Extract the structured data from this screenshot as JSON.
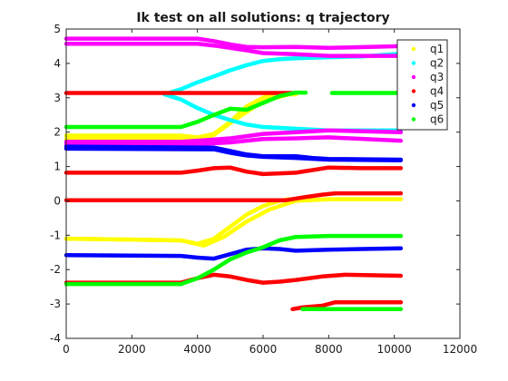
{
  "chart_data": {
    "type": "scatter",
    "title": "Ik test on all solutions: q trajectory",
    "xlabel": "",
    "ylabel": "",
    "xlim": [
      0,
      12000
    ],
    "ylim": [
      -4,
      5
    ],
    "xticks": [
      0,
      2000,
      4000,
      6000,
      8000,
      10000,
      12000
    ],
    "yticks": [
      -4,
      -3,
      -2,
      -1,
      0,
      1,
      2,
      3,
      4,
      5
    ],
    "xtick_labels": [
      "0",
      "2000",
      "4000",
      "6000",
      "8000",
      "10000",
      "12000"
    ],
    "ytick_labels": [
      "-4",
      "-3",
      "-2",
      "-1",
      "0",
      "1",
      "2",
      "3",
      "4",
      "5"
    ],
    "grid": false,
    "legend_position": "top-right",
    "series": [
      {
        "name": "q1",
        "color": "#ffff00",
        "curves": [
          [
            [
              0,
              1.9
            ],
            [
              3500,
              1.9
            ],
            [
              4000,
              1.85
            ],
            [
              4500,
              1.95
            ],
            [
              5000,
              2.3
            ],
            [
              5500,
              2.75
            ],
            [
              6000,
              3.0
            ],
            [
              6300,
              3.1
            ]
          ],
          [
            [
              0,
              1.8
            ],
            [
              3500,
              1.8
            ],
            [
              4000,
              1.78
            ],
            [
              4500,
              1.92
            ],
            [
              5200,
              2.4
            ],
            [
              6000,
              2.9
            ],
            [
              6800,
              3.1
            ],
            [
              7000,
              3.1
            ]
          ],
          [
            [
              0,
              -1.1
            ],
            [
              3500,
              -1.15
            ],
            [
              4000,
              -1.25
            ],
            [
              4500,
              -1.1
            ],
            [
              5000,
              -0.75
            ],
            [
              5500,
              -0.4
            ],
            [
              6000,
              -0.15
            ],
            [
              6500,
              0.0
            ],
            [
              6800,
              0.05
            ]
          ],
          [
            [
              0,
              -1.1
            ],
            [
              3500,
              -1.15
            ],
            [
              4200,
              -1.3
            ],
            [
              4800,
              -1.05
            ],
            [
              5500,
              -0.6
            ],
            [
              6200,
              -0.25
            ],
            [
              7000,
              0.0
            ],
            [
              8000,
              0.05
            ],
            [
              10200,
              0.05
            ]
          ]
        ]
      },
      {
        "name": "q2",
        "color": "#00ffff",
        "curves": [
          [
            [
              3000,
              3.1
            ],
            [
              3500,
              3.25
            ],
            [
              4000,
              3.45
            ],
            [
              4500,
              3.62
            ],
            [
              5000,
              3.8
            ],
            [
              5500,
              3.95
            ],
            [
              6000,
              4.07
            ],
            [
              6500,
              4.12
            ],
            [
              7000,
              4.15
            ],
            [
              8000,
              4.18
            ],
            [
              9000,
              4.2
            ],
            [
              10200,
              4.28
            ]
          ],
          [
            [
              3000,
              3.1
            ],
            [
              3500,
              2.95
            ],
            [
              4000,
              2.7
            ],
            [
              4500,
              2.5
            ],
            [
              5000,
              2.35
            ],
            [
              5500,
              2.22
            ],
            [
              6000,
              2.15
            ],
            [
              7000,
              2.1
            ],
            [
              8000,
              2.05
            ],
            [
              10200,
              2.05
            ]
          ]
        ]
      },
      {
        "name": "q3",
        "color": "#ff00ff",
        "curves": [
          [
            [
              0,
              4.72
            ],
            [
              4000,
              4.72
            ],
            [
              4500,
              4.65
            ],
            [
              5000,
              4.55
            ],
            [
              5500,
              4.48
            ],
            [
              6000,
              4.47
            ],
            [
              7000,
              4.48
            ],
            [
              8000,
              4.45
            ],
            [
              10200,
              4.5
            ]
          ],
          [
            [
              0,
              4.57
            ],
            [
              4000,
              4.57
            ],
            [
              4500,
              4.52
            ],
            [
              5000,
              4.45
            ],
            [
              5500,
              4.38
            ],
            [
              6000,
              4.3
            ],
            [
              7000,
              4.27
            ],
            [
              8000,
              4.22
            ],
            [
              10200,
              4.22
            ]
          ],
          [
            [
              0,
              1.72
            ],
            [
              3500,
              1.72
            ],
            [
              4000,
              1.75
            ],
            [
              5000,
              1.82
            ],
            [
              6000,
              1.95
            ],
            [
              7000,
              2.0
            ],
            [
              8000,
              2.05
            ],
            [
              10200,
              2.0
            ]
          ],
          [
            [
              0,
              1.65
            ],
            [
              3500,
              1.65
            ],
            [
              4000,
              1.65
            ],
            [
              5000,
              1.7
            ],
            [
              6000,
              1.8
            ],
            [
              7000,
              1.82
            ],
            [
              8000,
              1.85
            ],
            [
              10200,
              1.75
            ]
          ]
        ]
      },
      {
        "name": "q4",
        "color": "#ff0000",
        "curves": [
          [
            [
              0,
              3.14
            ],
            [
              6900,
              3.14
            ]
          ],
          [
            [
              0,
              0.82
            ],
            [
              3500,
              0.82
            ],
            [
              4000,
              0.88
            ],
            [
              4500,
              0.95
            ],
            [
              5000,
              0.97
            ],
            [
              5500,
              0.85
            ],
            [
              6000,
              0.78
            ],
            [
              6500,
              0.8
            ],
            [
              7000,
              0.82
            ],
            [
              8000,
              0.97
            ],
            [
              9000,
              0.95
            ],
            [
              10200,
              0.95
            ]
          ],
          [
            [
              0,
              0.02
            ],
            [
              6700,
              0.02
            ],
            [
              7200,
              0.1
            ],
            [
              7800,
              0.18
            ],
            [
              8200,
              0.22
            ],
            [
              10200,
              0.22
            ]
          ],
          [
            [
              0,
              -2.38
            ],
            [
              3500,
              -2.38
            ],
            [
              4000,
              -2.25
            ],
            [
              4500,
              -2.15
            ],
            [
              5000,
              -2.2
            ],
            [
              5500,
              -2.3
            ],
            [
              6000,
              -2.38
            ],
            [
              6500,
              -2.35
            ],
            [
              7000,
              -2.3
            ],
            [
              7800,
              -2.2
            ],
            [
              8500,
              -2.15
            ],
            [
              10200,
              -2.18
            ]
          ],
          [
            [
              6900,
              -3.15
            ],
            [
              7200,
              -3.1
            ],
            [
              7800,
              -3.05
            ],
            [
              8200,
              -2.95
            ],
            [
              10200,
              -2.95
            ]
          ]
        ]
      },
      {
        "name": "q5",
        "color": "#0000ff",
        "curves": [
          [
            [
              0,
              1.58
            ],
            [
              4500,
              1.55
            ],
            [
              5000,
              1.45
            ],
            [
              5500,
              1.35
            ],
            [
              6000,
              1.3
            ],
            [
              6500,
              1.3
            ],
            [
              7000,
              1.3
            ],
            [
              7500,
              1.25
            ],
            [
              8000,
              1.22
            ],
            [
              10200,
              1.2
            ]
          ],
          [
            [
              0,
              1.52
            ],
            [
              4500,
              1.5
            ],
            [
              5000,
              1.4
            ],
            [
              5500,
              1.32
            ],
            [
              6000,
              1.28
            ],
            [
              7000,
              1.25
            ],
            [
              8000,
              1.2
            ],
            [
              10200,
              1.18
            ]
          ],
          [
            [
              0,
              -1.58
            ],
            [
              3500,
              -1.6
            ],
            [
              4000,
              -1.65
            ],
            [
              4500,
              -1.68
            ],
            [
              5000,
              -1.55
            ],
            [
              5500,
              -1.42
            ],
            [
              6000,
              -1.38
            ],
            [
              6500,
              -1.4
            ],
            [
              7000,
              -1.45
            ],
            [
              8000,
              -1.42
            ],
            [
              9000,
              -1.4
            ],
            [
              10200,
              -1.38
            ]
          ]
        ]
      },
      {
        "name": "q6",
        "color": "#00ff00",
        "curves": [
          [
            [
              0,
              2.15
            ],
            [
              3500,
              2.15
            ],
            [
              4000,
              2.3
            ],
            [
              4500,
              2.5
            ],
            [
              5000,
              2.68
            ],
            [
              5500,
              2.65
            ],
            [
              6000,
              2.85
            ],
            [
              6500,
              3.05
            ],
            [
              7000,
              3.15
            ],
            [
              7300,
              3.15
            ]
          ],
          [
            [
              8100,
              3.14
            ],
            [
              10200,
              3.14
            ]
          ],
          [
            [
              0,
              -2.42
            ],
            [
              3500,
              -2.42
            ],
            [
              4000,
              -2.25
            ],
            [
              4500,
              -2.0
            ],
            [
              5000,
              -1.7
            ],
            [
              5500,
              -1.5
            ],
            [
              6000,
              -1.35
            ],
            [
              6500,
              -1.15
            ],
            [
              7000,
              -1.05
            ],
            [
              8000,
              -1.02
            ],
            [
              10200,
              -1.02
            ]
          ],
          [
            [
              7200,
              -3.15
            ],
            [
              8000,
              -3.15
            ],
            [
              8500,
              -3.15
            ],
            [
              10200,
              -3.15
            ]
          ]
        ]
      }
    ]
  }
}
